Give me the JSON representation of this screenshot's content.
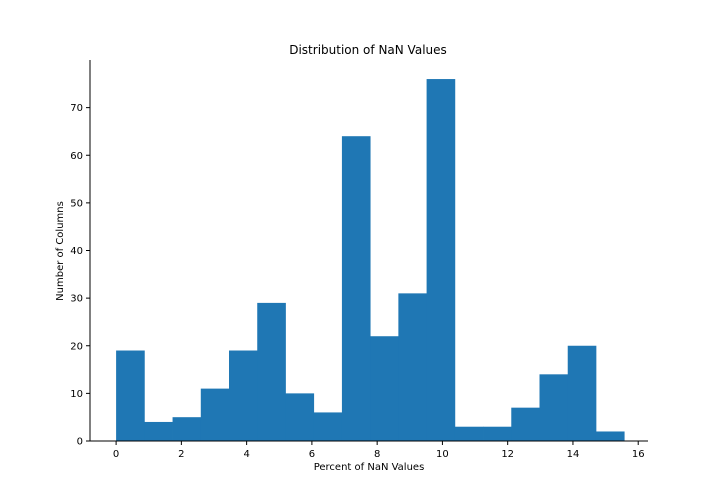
{
  "chart_data": {
    "type": "bar",
    "title": "Distribution of NaN Values",
    "xlabel": "Percent of NaN Values",
    "ylabel": "Number of Columns",
    "xlim": [
      -0.8,
      16.3
    ],
    "ylim": [
      0,
      80
    ],
    "xticks": [
      0,
      2,
      4,
      6,
      8,
      10,
      12,
      14,
      16
    ],
    "yticks": [
      0,
      10,
      20,
      30,
      40,
      50,
      60,
      70
    ],
    "bin_edges": [
      0,
      0.865,
      1.73,
      2.595,
      3.46,
      4.325,
      5.19,
      6.055,
      6.92,
      7.785,
      8.65,
      9.515,
      10.38,
      11.245,
      12.11,
      12.975,
      13.84,
      14.705,
      15.57
    ],
    "values": [
      19,
      4,
      5,
      11,
      19,
      29,
      10,
      6,
      64,
      22,
      31,
      76,
      3,
      3,
      7,
      14,
      20,
      2
    ],
    "bar_color": "#1f77b4",
    "grid": false
  }
}
